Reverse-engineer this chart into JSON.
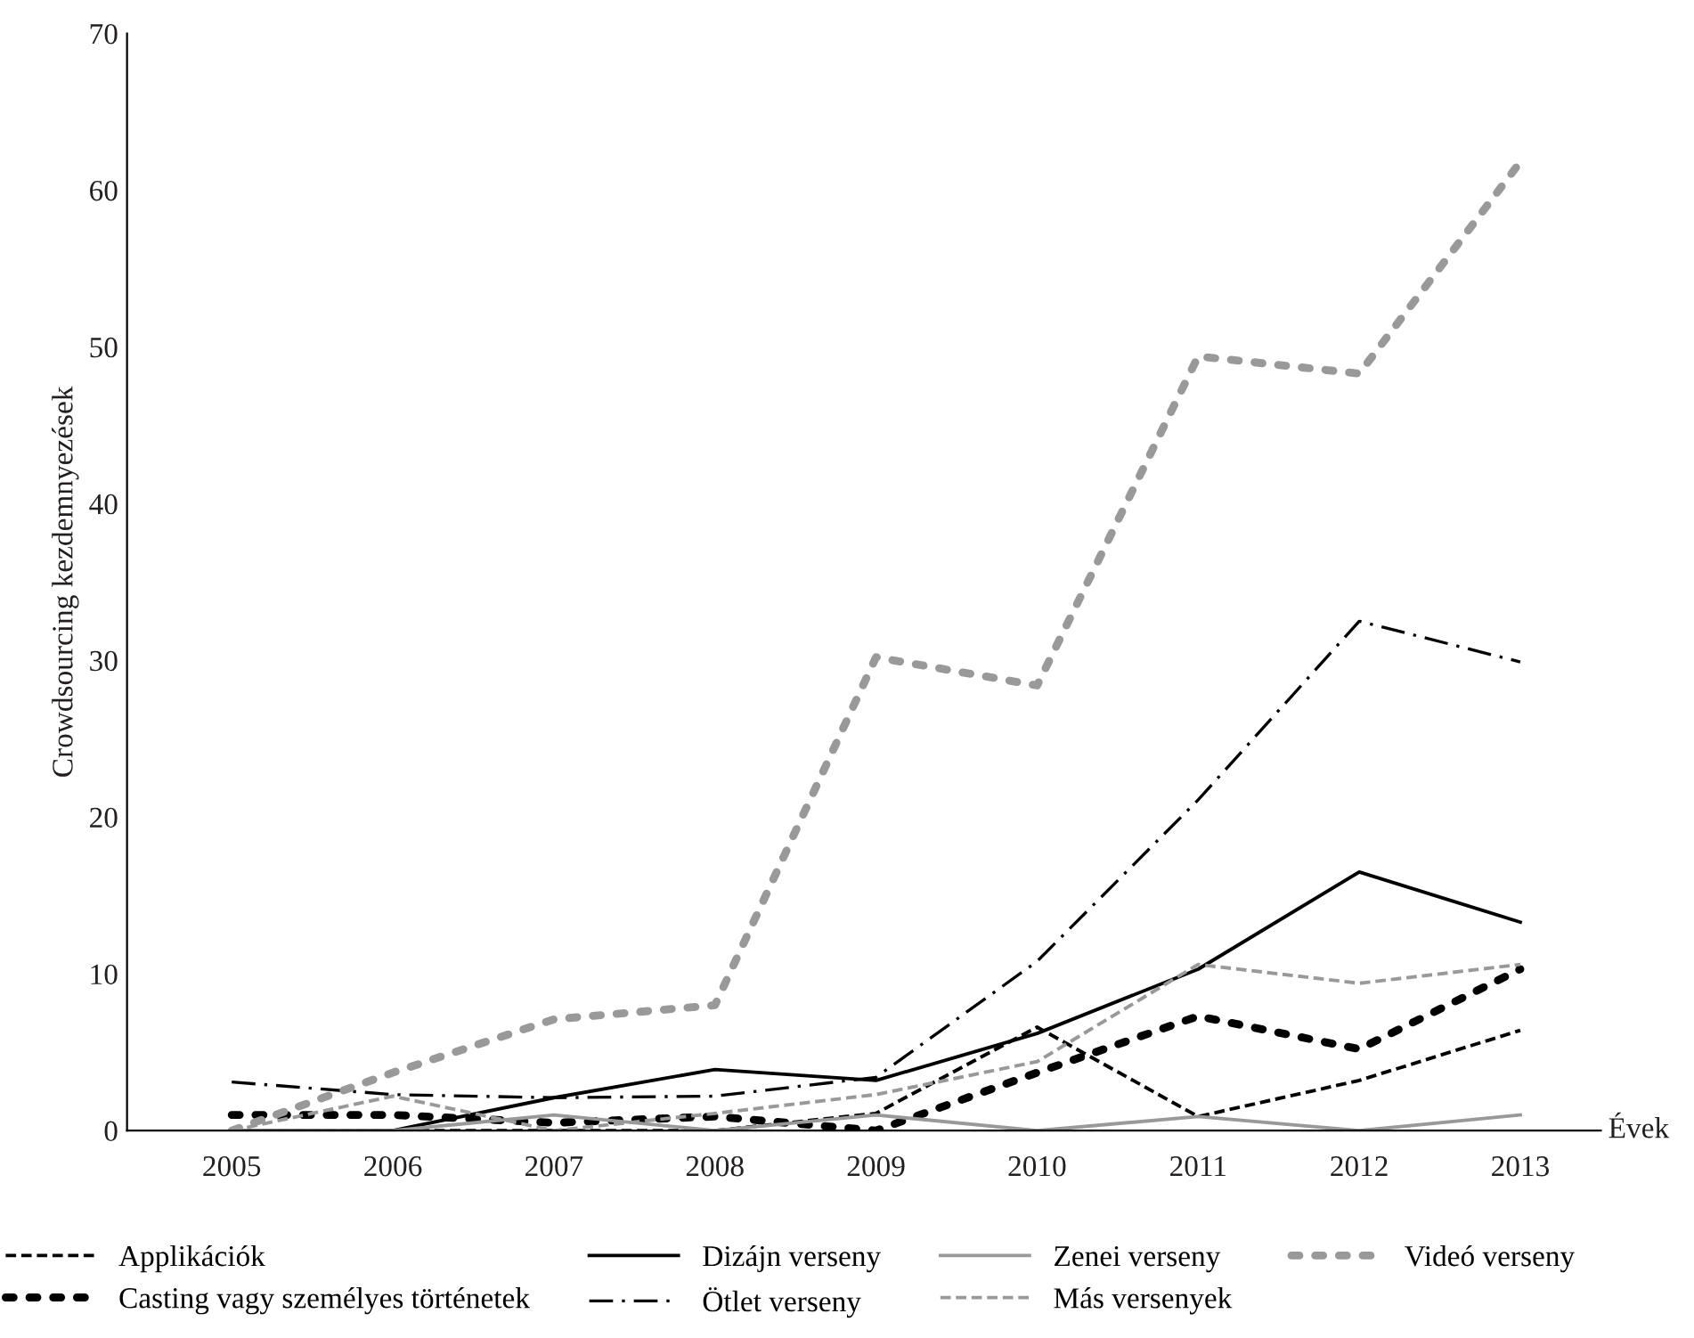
{
  "chart_data": {
    "type": "line",
    "ylabel": "Crowdsourcing kezdemnyezések",
    "xlabel": "Évek",
    "x": [
      2005,
      2006,
      2007,
      2008,
      2009,
      2010,
      2011,
      2012,
      2013
    ],
    "xlim": [
      2004.35,
      2013.5
    ],
    "xticks": [
      2005,
      2006,
      2007,
      2008,
      2009,
      2010,
      2011,
      2012,
      2013
    ],
    "ylim": [
      0,
      70
    ],
    "yticks": [
      0,
      10,
      20,
      30,
      40,
      50,
      60,
      70
    ],
    "grid": false,
    "legend": "bottom",
    "marker": "none",
    "series": [
      {
        "name": "Applikációk",
        "color": "#000000",
        "line_style": "dashed",
        "values": [
          0,
          0,
          0,
          0,
          1.1,
          6.6,
          0.9,
          3.2,
          6.4
        ]
      },
      {
        "name": "Casting vagy személyes történetek",
        "color": "#000000",
        "line_style": "dotted",
        "values": [
          1,
          1,
          0.5,
          0.9,
          0,
          3.7,
          7.3,
          5.2,
          10.3
        ]
      },
      {
        "name": "Dizájn verseny",
        "color": "#000000",
        "line_style": "solid",
        "values": [
          0,
          0,
          2.1,
          3.9,
          3.2,
          6.2,
          10.3,
          16.5,
          13.3
        ]
      },
      {
        "name": "Ötlet verseny",
        "color": "#000000",
        "line_style": "dashdot",
        "values": [
          3.1,
          2.3,
          2.1,
          2.2,
          3.4,
          10.8,
          21.1,
          32.5,
          29.9
        ]
      },
      {
        "name": "Zenei verseny",
        "color": "#999999",
        "line_style": "solid",
        "values": [
          0,
          0,
          1,
          0,
          1,
          0,
          0.9,
          0,
          1
        ]
      },
      {
        "name": "Más versenyek",
        "color": "#999999",
        "line_style": "dashed",
        "values": [
          0,
          2.2,
          0,
          1.1,
          2.3,
          4.4,
          10.6,
          9.4,
          10.6
        ]
      },
      {
        "name": "Videó verseny",
        "color": "#999999",
        "line_style": "dotted",
        "values": [
          0,
          3.7,
          7.1,
          8,
          30.2,
          28.4,
          49.4,
          48.3,
          61.8
        ]
      }
    ]
  }
}
